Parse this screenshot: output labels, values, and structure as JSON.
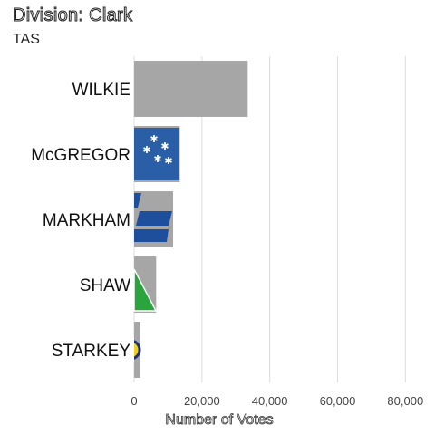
{
  "title": "Division: Clark",
  "subtitle": "TAS",
  "chart_data": {
    "type": "bar",
    "orientation": "horizontal",
    "categories": [
      "WILKIE",
      "McGREGOR",
      "MARKHAM",
      "SHAW",
      "STARKEY"
    ],
    "values": [
      33500,
      13500,
      11500,
      6500,
      1800
    ],
    "logos": [
      "none",
      "southern-cross-flag-logo",
      "liberal-party-logo",
      "greens-logo",
      "yellow-circle-party-logo"
    ],
    "xlabel": "Number of Votes",
    "ylabel": "",
    "xlim": [
      0,
      85000
    ],
    "xticks": [
      0,
      20000,
      40000,
      60000,
      80000
    ],
    "xtick_labels": [
      "0",
      "20,000",
      "40,000",
      "60,000",
      "80,000"
    ],
    "grid": true,
    "colors": {
      "bar": "#a6a6a6",
      "grid": "#dcdcdc"
    }
  }
}
